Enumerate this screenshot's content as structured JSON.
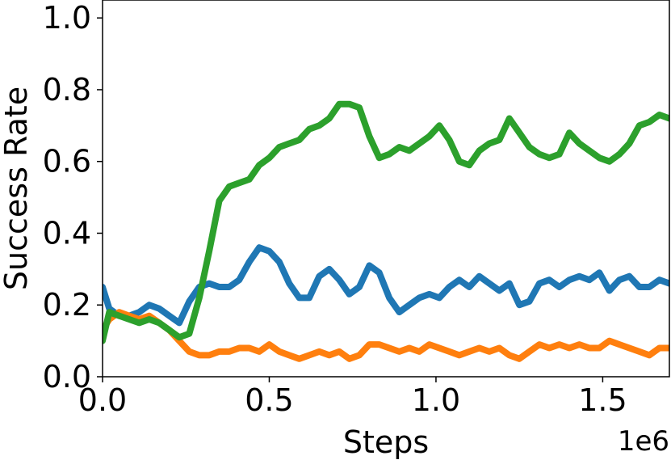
{
  "chart_data": {
    "type": "line",
    "title": "",
    "xlabel": "Steps",
    "ylabel": "Success Rate",
    "x_offset_label": "1e6",
    "xlim": [
      0.0,
      1.7
    ],
    "ylim": [
      0.0,
      1.05
    ],
    "x_ticks": [
      0.0,
      0.5,
      1.0,
      1.5
    ],
    "x_tick_labels": [
      "0.0",
      "0.5",
      "1.0",
      "1.5"
    ],
    "y_ticks": [
      0.0,
      0.2,
      0.4,
      0.6,
      0.8,
      1.0
    ],
    "y_tick_labels": [
      "0.0",
      "0.2",
      "0.4",
      "0.6",
      "0.8",
      "1.0"
    ],
    "grid": false,
    "legend": "none",
    "series": [
      {
        "color": "#1f77b4",
        "x": [
          0.0,
          0.02,
          0.05,
          0.08,
          0.11,
          0.14,
          0.17,
          0.2,
          0.23,
          0.26,
          0.29,
          0.32,
          0.35,
          0.38,
          0.41,
          0.44,
          0.47,
          0.5,
          0.53,
          0.56,
          0.59,
          0.62,
          0.65,
          0.68,
          0.71,
          0.74,
          0.77,
          0.8,
          0.83,
          0.86,
          0.89,
          0.92,
          0.95,
          0.98,
          1.01,
          1.04,
          1.07,
          1.1,
          1.13,
          1.16,
          1.19,
          1.22,
          1.25,
          1.28,
          1.31,
          1.34,
          1.37,
          1.4,
          1.43,
          1.46,
          1.49,
          1.52,
          1.55,
          1.58,
          1.61,
          1.64,
          1.67,
          1.7
        ],
        "y": [
          0.25,
          0.19,
          0.17,
          0.17,
          0.18,
          0.2,
          0.19,
          0.17,
          0.15,
          0.21,
          0.25,
          0.26,
          0.25,
          0.25,
          0.27,
          0.32,
          0.36,
          0.35,
          0.32,
          0.26,
          0.22,
          0.22,
          0.28,
          0.3,
          0.27,
          0.23,
          0.25,
          0.31,
          0.29,
          0.22,
          0.18,
          0.2,
          0.22,
          0.23,
          0.22,
          0.25,
          0.27,
          0.25,
          0.28,
          0.26,
          0.24,
          0.26,
          0.2,
          0.21,
          0.26,
          0.27,
          0.25,
          0.27,
          0.28,
          0.27,
          0.29,
          0.24,
          0.27,
          0.28,
          0.25,
          0.25,
          0.27,
          0.26
        ]
      },
      {
        "color": "#ff7f0e",
        "x": [
          0.0,
          0.02,
          0.05,
          0.08,
          0.11,
          0.14,
          0.17,
          0.2,
          0.23,
          0.26,
          0.29,
          0.32,
          0.35,
          0.38,
          0.41,
          0.44,
          0.47,
          0.5,
          0.53,
          0.56,
          0.59,
          0.62,
          0.65,
          0.68,
          0.71,
          0.74,
          0.77,
          0.8,
          0.83,
          0.86,
          0.89,
          0.92,
          0.95,
          0.98,
          1.01,
          1.04,
          1.07,
          1.1,
          1.13,
          1.16,
          1.19,
          1.22,
          1.25,
          1.28,
          1.31,
          1.34,
          1.37,
          1.4,
          1.43,
          1.46,
          1.49,
          1.52,
          1.55,
          1.58,
          1.61,
          1.64,
          1.67,
          1.7
        ],
        "y": [
          0.13,
          0.16,
          0.18,
          0.17,
          0.16,
          0.17,
          0.15,
          0.13,
          0.1,
          0.07,
          0.06,
          0.06,
          0.07,
          0.07,
          0.08,
          0.08,
          0.07,
          0.09,
          0.07,
          0.06,
          0.05,
          0.06,
          0.07,
          0.06,
          0.07,
          0.05,
          0.06,
          0.09,
          0.09,
          0.08,
          0.07,
          0.08,
          0.07,
          0.09,
          0.08,
          0.07,
          0.06,
          0.07,
          0.08,
          0.07,
          0.08,
          0.06,
          0.05,
          0.07,
          0.09,
          0.08,
          0.09,
          0.08,
          0.09,
          0.08,
          0.08,
          0.1,
          0.09,
          0.08,
          0.07,
          0.06,
          0.08,
          0.08
        ]
      },
      {
        "color": "#2ca02c",
        "x": [
          0.0,
          0.02,
          0.05,
          0.08,
          0.11,
          0.14,
          0.17,
          0.2,
          0.23,
          0.26,
          0.29,
          0.32,
          0.35,
          0.38,
          0.41,
          0.44,
          0.47,
          0.5,
          0.53,
          0.56,
          0.59,
          0.62,
          0.65,
          0.68,
          0.71,
          0.74,
          0.77,
          0.8,
          0.83,
          0.86,
          0.89,
          0.92,
          0.95,
          0.98,
          1.01,
          1.04,
          1.07,
          1.1,
          1.13,
          1.16,
          1.19,
          1.22,
          1.25,
          1.28,
          1.31,
          1.34,
          1.37,
          1.4,
          1.43,
          1.46,
          1.49,
          1.52,
          1.55,
          1.58,
          1.61,
          1.64,
          1.67,
          1.7
        ],
        "y": [
          0.1,
          0.18,
          0.17,
          0.16,
          0.15,
          0.16,
          0.15,
          0.13,
          0.11,
          0.12,
          0.22,
          0.35,
          0.49,
          0.53,
          0.54,
          0.55,
          0.59,
          0.61,
          0.64,
          0.65,
          0.66,
          0.69,
          0.7,
          0.72,
          0.76,
          0.76,
          0.75,
          0.67,
          0.61,
          0.62,
          0.64,
          0.63,
          0.65,
          0.67,
          0.7,
          0.66,
          0.6,
          0.59,
          0.63,
          0.65,
          0.66,
          0.72,
          0.68,
          0.64,
          0.62,
          0.61,
          0.62,
          0.68,
          0.65,
          0.63,
          0.61,
          0.6,
          0.62,
          0.65,
          0.7,
          0.71,
          0.73,
          0.72
        ]
      }
    ]
  }
}
